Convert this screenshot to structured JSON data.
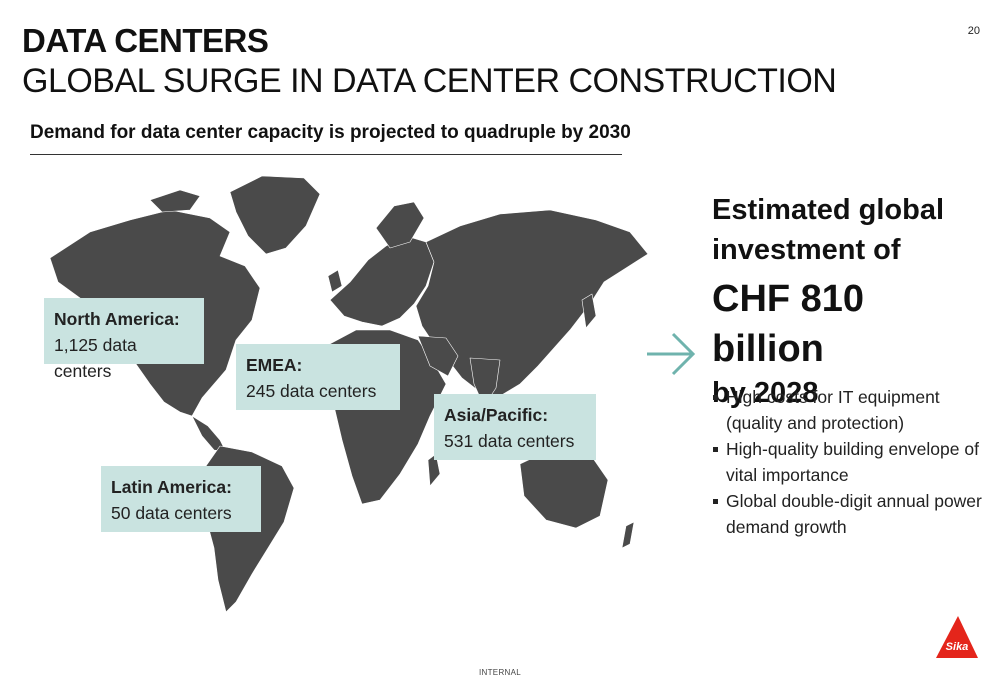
{
  "header": {
    "title": "DATA CENTERS",
    "subtitle": "GLOBAL SURGE IN DATA CENTER CONSTRUCTION",
    "page_number": "20"
  },
  "tagline": "Demand for data center capacity is projected to quadruple by 2030",
  "regions": [
    {
      "name": "North America:",
      "value": "1,125 data centers"
    },
    {
      "name": "EMEA:",
      "value": "245 data centers"
    },
    {
      "name": "Asia/Pacific:",
      "value": "531 data centers"
    },
    {
      "name": "Latin America:",
      "value": "50 data centers"
    }
  ],
  "investment": {
    "line1": "Estimated global",
    "line2": "investment of",
    "amount": "CHF 810 billion",
    "year": "by 2028"
  },
  "bullets": [
    "High costs for IT equipment (quality and protection)",
    "High-quality building envelope of vital importance",
    "Global double-digit annual power demand growth"
  ],
  "footer": {
    "classification": "INTERNAL"
  },
  "logo": {
    "text": "Sika"
  },
  "colors": {
    "map": "#4a4a4a",
    "callout_bg": "#c9e3e0",
    "arrow": "#6fb3ad",
    "logo_red": "#e4251b"
  },
  "icons": {
    "arrow": "right-arrow-icon",
    "logo": "sika-logo"
  }
}
